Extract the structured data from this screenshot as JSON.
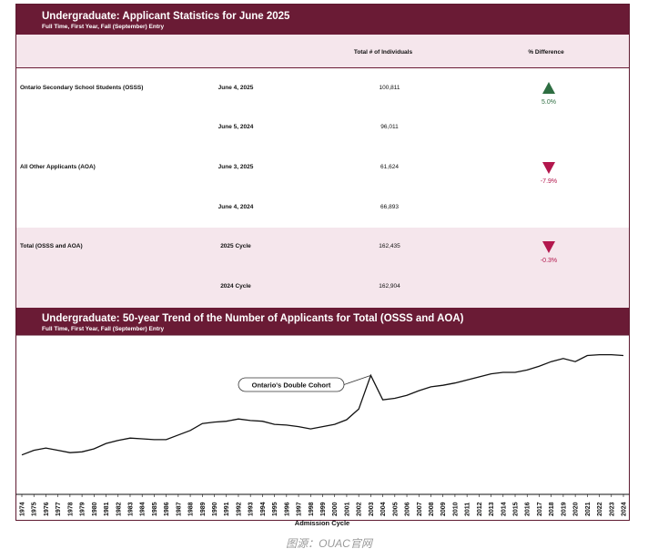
{
  "table": {
    "title": "Undergraduate: Applicant Statistics for June 2025",
    "subtitle": "Full Time, First Year, Fall (September) Entry",
    "col_total": "Total # of Individuals",
    "col_diff": "% Difference",
    "rows": [
      {
        "group": "Ontario Secondary School Students (OSSS)",
        "date": "June 4, 2025",
        "value": "100,811",
        "diff": "5.0%",
        "direction": "up"
      },
      {
        "group": "",
        "date": "June 5, 2024",
        "value": "96,011",
        "diff": "",
        "direction": ""
      },
      {
        "group": "All Other Applicants (AOA)",
        "date": "June 3, 2025",
        "value": "61,624",
        "diff": "-7.9%",
        "direction": "down"
      },
      {
        "group": "",
        "date": "June 4, 2024",
        "value": "66,893",
        "diff": "",
        "direction": ""
      },
      {
        "group": "Total (OSSS and AOA)",
        "date": "2025 Cycle",
        "value": "162,435",
        "diff": "-0.3%",
        "direction": "down"
      },
      {
        "group": "",
        "date": "2024 Cycle",
        "value": "162,904",
        "diff": "",
        "direction": ""
      }
    ]
  },
  "chart_data": {
    "type": "line",
    "title": "Undergraduate: 50-year Trend of the Number of Applicants for Total (OSSS and AOA)",
    "subtitle": "Full Time, First Year, Fall (September) Entry",
    "xlabel": "Admission Cycle",
    "ylabel": "",
    "grid": false,
    "y_axis_labels": false,
    "annotation": {
      "text": "Ontario's Double Cohort",
      "x": "2003"
    },
    "x": [
      "1974",
      "1975",
      "1976",
      "1977",
      "1978",
      "1979",
      "1980",
      "1981",
      "1982",
      "1983",
      "1984",
      "1985",
      "1986",
      "1987",
      "1988",
      "1989",
      "1990",
      "1991",
      "1992",
      "1993",
      "1994",
      "1995",
      "1996",
      "1997",
      "1998",
      "1999",
      "2000",
      "2001",
      "2002",
      "2003",
      "2004",
      "2005",
      "2006",
      "2007",
      "2008",
      "2009",
      "2010",
      "2011",
      "2012",
      "2013",
      "2014",
      "2015",
      "2016",
      "2017",
      "2018",
      "2019",
      "2020",
      "2021",
      "2022",
      "2023",
      "2024"
    ],
    "series": [
      {
        "values": [
          84000,
          87000,
          88500,
          87000,
          85500,
          86000,
          88000,
          91500,
          93500,
          95000,
          94500,
          94000,
          94000,
          97000,
          100000,
          104500,
          105500,
          106000,
          107500,
          106500,
          106000,
          104000,
          103500,
          102500,
          101000,
          102500,
          104000,
          107000,
          114000,
          136000,
          120000,
          121000,
          123000,
          126000,
          128500,
          129500,
          131000,
          133000,
          135000,
          137000,
          138000,
          138000,
          139500,
          142000,
          145000,
          147000,
          145000,
          149000,
          149500,
          149500,
          149000
        ]
      }
    ],
    "color": "#111111"
  },
  "source_caption": "图源：OUAC官网"
}
